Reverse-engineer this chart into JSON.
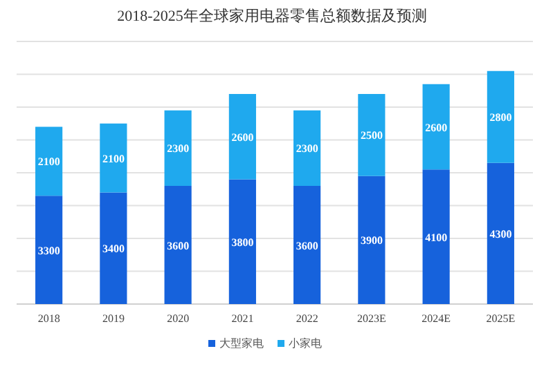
{
  "chart_data": {
    "type": "bar",
    "title": "2018-2025年全球家用电器零售总额数据及预测",
    "stacked": true,
    "categories": [
      "2018",
      "2019",
      "2020",
      "2021",
      "2022",
      "2023E",
      "2024E",
      "2025E"
    ],
    "series": [
      {
        "name": "大型家电",
        "color": "#1662dc",
        "values": [
          3300,
          3400,
          3600,
          3800,
          3600,
          3900,
          4100,
          4300
        ]
      },
      {
        "name": "小家电",
        "color": "#1fa9ee",
        "values": [
          2100,
          2100,
          2300,
          2600,
          2300,
          2500,
          2600,
          2800
        ]
      }
    ],
    "ylim": [
      0,
      8000
    ],
    "yticks": [
      {
        "value": 0,
        "label": null
      },
      {
        "value": 1000,
        "label": null
      },
      {
        "value": 2000,
        "label": null
      },
      {
        "value": 3000,
        "label": null
      },
      {
        "value": 4000,
        "label": null
      },
      {
        "value": 5000,
        "label": null
      },
      {
        "value": 6000,
        "label": null
      },
      {
        "value": 7000,
        "label": null
      },
      {
        "value": 8000,
        "label": null
      }
    ],
    "tick_labels": "x",
    "grid": "y",
    "data_labels": true,
    "legend": "bottom"
  }
}
